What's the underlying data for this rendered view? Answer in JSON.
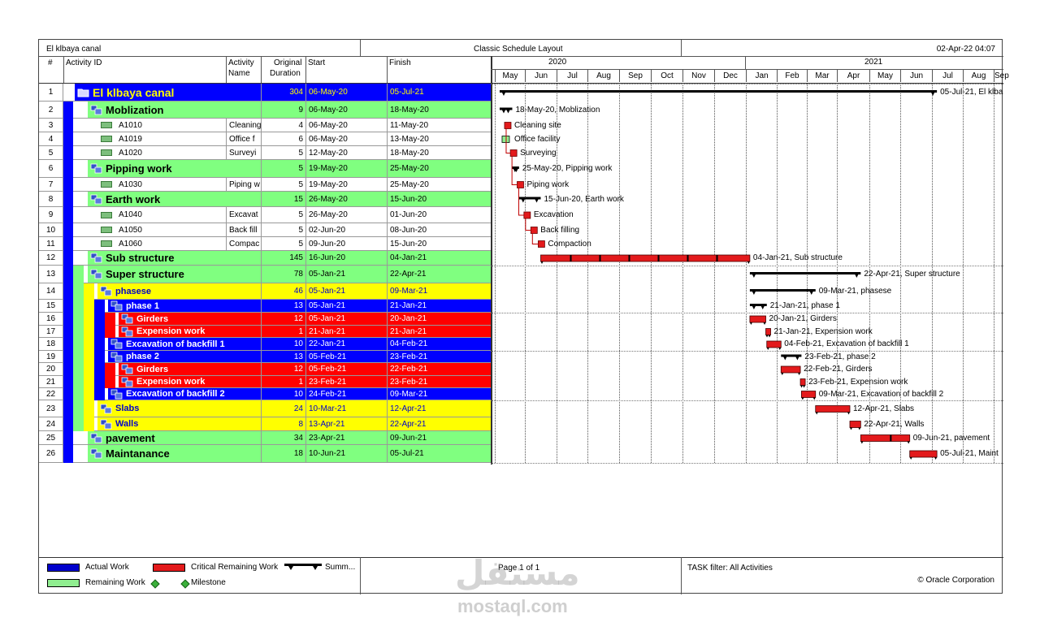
{
  "header": {
    "project_title": "El klbaya canal",
    "layout_name": "Classic Schedule Layout",
    "report_date": "02-Apr-22 04:07"
  },
  "columns": {
    "num": "#",
    "activity_id": "Activity ID",
    "activity_name_1": "Activity",
    "activity_name_2": "Name",
    "duration_1": "Original",
    "duration_2": "Duration",
    "start": "Start",
    "finish": "Finish"
  },
  "timescale": {
    "years": [
      "2020",
      "2021"
    ],
    "months": [
      "May",
      "Jun",
      "Jul",
      "Aug",
      "Sep",
      "Oct",
      "Nov",
      "Dec",
      "Jan",
      "Feb",
      "Mar",
      "Apr",
      "May",
      "Jun",
      "Jul",
      "Aug",
      "Sep"
    ]
  },
  "colors": {
    "wbs_blue": "#0000ff",
    "wbs_green": "#80ff80",
    "wbs_yellow": "#ffff00",
    "wbs_red": "#ff0000",
    "critical_bar": "#e31a1c",
    "summary_bar": "#000000",
    "remaining_bar": "#90ee90"
  },
  "rows": [
    {
      "num": "1",
      "label": "El klbaya canal",
      "type": "wbs",
      "level": 0,
      "bg": "#0000ff",
      "fg": "#ffff00",
      "big": true,
      "duration": "304",
      "start": "06-May-20",
      "finish": "05-Jul-21",
      "bar_label": "05-Jul-21, El klba"
    },
    {
      "num": "2",
      "label": "Moblization",
      "type": "wbs",
      "level": 1,
      "bg": "#80ff80",
      "fg": "#000000",
      "big": true,
      "duration": "9",
      "start": "06-May-20",
      "finish": "18-May-20",
      "bar_label": "18-May-20, Moblization"
    },
    {
      "num": "3",
      "label": "A1010",
      "activity_name": "Cleaning",
      "type": "act",
      "duration": "4",
      "start": "06-May-20",
      "finish": "11-May-20",
      "bar_label": "Cleaning site"
    },
    {
      "num": "4",
      "label": "A1019",
      "activity_name": "Office f",
      "type": "act",
      "duration": "6",
      "start": "06-May-20",
      "finish": "13-May-20",
      "bar_label": "Office facility"
    },
    {
      "num": "5",
      "label": "A1020",
      "activity_name": "Surveyi",
      "type": "act",
      "duration": "5",
      "start": "12-May-20",
      "finish": "18-May-20",
      "bar_label": "Surveying"
    },
    {
      "num": "6",
      "label": "Pipping work",
      "type": "wbs",
      "level": 1,
      "bg": "#80ff80",
      "fg": "#000000",
      "big": true,
      "duration": "5",
      "start": "19-May-20",
      "finish": "25-May-20",
      "bar_label": "25-May-20, Pipping work"
    },
    {
      "num": "7",
      "label": "A1030",
      "activity_name": "Piping w",
      "type": "act",
      "duration": "5",
      "start": "19-May-20",
      "finish": "25-May-20",
      "bar_label": "Piping work"
    },
    {
      "num": "8",
      "label": "Earth work",
      "type": "wbs",
      "level": 1,
      "bg": "#80ff80",
      "fg": "#000000",
      "big": true,
      "duration": "15",
      "start": "26-May-20",
      "finish": "15-Jun-20",
      "bar_label": "15-Jun-20, Earth work"
    },
    {
      "num": "9",
      "label": "A1040",
      "activity_name": "Excavat",
      "type": "act",
      "duration": "5",
      "start": "26-May-20",
      "finish": "01-Jun-20",
      "bar_label": "Excavation"
    },
    {
      "num": "10",
      "label": "A1050",
      "activity_name": "Back fill",
      "type": "act",
      "duration": "5",
      "start": "02-Jun-20",
      "finish": "08-Jun-20",
      "bar_label": "Back filling"
    },
    {
      "num": "11",
      "label": "A1060",
      "activity_name": "Compac",
      "type": "act",
      "duration": "5",
      "start": "09-Jun-20",
      "finish": "15-Jun-20",
      "bar_label": "Compaction"
    },
    {
      "num": "12",
      "label": "Sub structure",
      "type": "wbs",
      "level": 1,
      "bg": "#80ff80",
      "fg": "#000000",
      "big": true,
      "duration": "145",
      "start": "16-Jun-20",
      "finish": "04-Jan-21",
      "bar_label": "04-Jan-21, Sub structure"
    },
    {
      "num": "13",
      "label": "Super structure",
      "type": "wbs",
      "level": 1,
      "bg": "#80ff80",
      "fg": "#000000",
      "big": true,
      "duration": "78",
      "start": "05-Jan-21",
      "finish": "22-Apr-21",
      "bar_label": "22-Apr-21, Super structure"
    },
    {
      "num": "14",
      "label": "phasese",
      "type": "wbs",
      "level": 2,
      "bg": "#ffff00",
      "fg": "#0000cc",
      "big": false,
      "duration": "46",
      "start": "05-Jan-21",
      "finish": "09-Mar-21",
      "bar_label": "09-Mar-21, phasese"
    },
    {
      "num": "15",
      "label": "phase 1",
      "type": "wbs",
      "level": 3,
      "bg": "#0000ff",
      "fg": "#ffffff",
      "big": false,
      "duration": "13",
      "start": "05-Jan-21",
      "finish": "21-Jan-21",
      "bar_label": "21-Jan-21, phase 1"
    },
    {
      "num": "16",
      "label": "Girders",
      "type": "wbs",
      "level": 4,
      "bg": "#ff0000",
      "fg": "#ffffff",
      "big": false,
      "duration": "12",
      "start": "05-Jan-21",
      "finish": "20-Jan-21",
      "bar_label": "20-Jan-21, Girders"
    },
    {
      "num": "17",
      "label": "Expension work",
      "type": "wbs",
      "level": 4,
      "bg": "#ff0000",
      "fg": "#ffffff",
      "big": false,
      "duration": "1",
      "start": "21-Jan-21",
      "finish": "21-Jan-21",
      "bar_label": "21-Jan-21, Expension work"
    },
    {
      "num": "18",
      "label": "Excavation of backfill 1",
      "type": "wbs",
      "level": 3,
      "bg": "#0000ff",
      "fg": "#ffffff",
      "big": false,
      "duration": "10",
      "start": "22-Jan-21",
      "finish": "04-Feb-21",
      "bar_label": "04-Feb-21, Excavation of backfill 1"
    },
    {
      "num": "19",
      "label": "phase 2",
      "type": "wbs",
      "level": 3,
      "bg": "#0000ff",
      "fg": "#ffffff",
      "big": false,
      "duration": "13",
      "start": "05-Feb-21",
      "finish": "23-Feb-21",
      "bar_label": "23-Feb-21, phase 2"
    },
    {
      "num": "20",
      "label": "Girders",
      "type": "wbs",
      "level": 4,
      "bg": "#ff0000",
      "fg": "#ffffff",
      "big": false,
      "duration": "12",
      "start": "05-Feb-21",
      "finish": "22-Feb-21",
      "bar_label": "22-Feb-21, Girders"
    },
    {
      "num": "21",
      "label": "Expension work",
      "type": "wbs",
      "level": 4,
      "bg": "#ff0000",
      "fg": "#ffffff",
      "big": false,
      "duration": "1",
      "start": "23-Feb-21",
      "finish": "23-Feb-21",
      "bar_label": "23-Feb-21, Expension work"
    },
    {
      "num": "22",
      "label": "Excavation of backfill 2",
      "type": "wbs",
      "level": 3,
      "bg": "#0000ff",
      "fg": "#ffffff",
      "big": false,
      "duration": "10",
      "start": "24-Feb-21",
      "finish": "09-Mar-21",
      "bar_label": "09-Mar-21, Excavation of backfill 2"
    },
    {
      "num": "23",
      "label": "Slabs",
      "type": "wbs",
      "level": 2,
      "bg": "#ffff00",
      "fg": "#0000cc",
      "big": false,
      "duration": "24",
      "start": "10-Mar-21",
      "finish": "12-Apr-21",
      "bar_label": "12-Apr-21, Slabs"
    },
    {
      "num": "24",
      "label": "Walls",
      "type": "wbs",
      "level": 2,
      "bg": "#ffff00",
      "fg": "#0000cc",
      "big": false,
      "duration": "8",
      "start": "13-Apr-21",
      "finish": "22-Apr-21",
      "bar_label": "22-Apr-21, Walls"
    },
    {
      "num": "25",
      "label": "pavement",
      "type": "wbs",
      "level": 1,
      "bg": "#80ff80",
      "fg": "#000000",
      "big": true,
      "duration": "34",
      "start": "23-Apr-21",
      "finish": "09-Jun-21",
      "bar_label": "09-Jun-21, pavement"
    },
    {
      "num": "26",
      "label": "Maintanance",
      "type": "wbs",
      "level": 1,
      "bg": "#80ff80",
      "fg": "#000000",
      "big": true,
      "duration": "18",
      "start": "10-Jun-21",
      "finish": "05-Jul-21",
      "bar_label": "05-Jul-21, Maint"
    }
  ],
  "legend": {
    "actual_work": "Actual Work",
    "critical_remaining": "Critical Remaining Work",
    "summary": "Summ...",
    "remaining_work": "Remaining Work",
    "milestone": "Milestone"
  },
  "footer": {
    "page": "Page 1 of 1",
    "filter": "TASK filter: All Activities",
    "copyright": "© Oracle Corporation"
  },
  "watermark": {
    "arabic": "مستقل",
    "latin": "mostaql.com"
  }
}
